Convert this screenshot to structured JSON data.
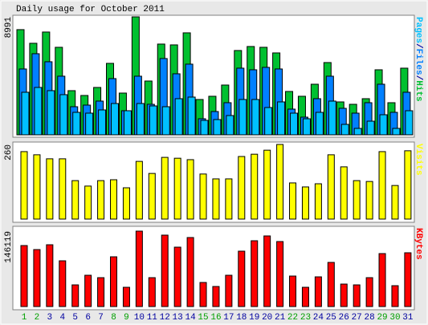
{
  "title": "Daily usage for October 2011",
  "legend_separator": "/",
  "chart_data": [
    {
      "type": "bar",
      "ylim": [
        0,
        8991
      ],
      "yticks": [
        8991
      ],
      "series": [
        {
          "name": "Pages",
          "color": "#00c0ff",
          "values": [
            3244,
            3611,
            3366,
            3060,
            1714,
            1652,
            1897,
            2387,
            1836,
            2387,
            2203,
            2142,
            2754,
            2876,
            1102,
            1163,
            1469,
            2693,
            2693,
            2081,
            2509,
            1652,
            1224,
            1714,
            2570,
            796,
            490,
            1040,
            1530,
            490,
            1836
          ]
        },
        {
          "name": "Files",
          "color": "#0080ff",
          "values": [
            5018,
            6181,
            5569,
            4468,
            2142,
            2264,
            2570,
            4284,
            1836,
            4468,
            2326,
            5814,
            4651,
            5386,
            1224,
            1775,
            2448,
            5080,
            4957,
            5141,
            5018,
            1958,
            1346,
            2754,
            4468,
            2020,
            1652,
            2448,
            3856,
            1714,
            3244
          ]
        },
        {
          "name": "Hits",
          "color": "#00c030",
          "values": [
            8017,
            6977,
            7834,
            6671,
            3366,
            2999,
            3611,
            5447,
            3182,
            8991,
            4100,
            6916,
            6854,
            7772,
            2693,
            2938,
            3794,
            6426,
            6732,
            6671,
            6242,
            3305,
            2938,
            3856,
            5508,
            2509,
            2326,
            2754,
            4957,
            2448,
            5080
          ]
        }
      ]
    },
    {
      "type": "bar",
      "ylim": [
        0,
        260
      ],
      "yticks": [
        260
      ],
      "series": [
        {
          "name": "Visits",
          "color": "#ffff00",
          "values": [
            235,
            224,
            210,
            210,
            134,
            115,
            134,
            137,
            109,
            201,
            159,
            215,
            212,
            207,
            157,
            140,
            140,
            218,
            226,
            240,
            260,
            126,
            112,
            123,
            224,
            182,
            134,
            131,
            235,
            117,
            238
          ]
        }
      ]
    },
    {
      "type": "bar",
      "ylim": [
        0,
        146119
      ],
      "yticks": [
        146119
      ],
      "categories": [
        "1",
        "2",
        "3",
        "4",
        "5",
        "6",
        "7",
        "8",
        "9",
        "10",
        "11",
        "12",
        "13",
        "14",
        "15",
        "16",
        "17",
        "18",
        "19",
        "20",
        "21",
        "22",
        "23",
        "24",
        "25",
        "26",
        "27",
        "28",
        "29",
        "30",
        "31"
      ],
      "category_colors": [
        "#00a000",
        "#00a000",
        "#0000a0",
        "#0000a0",
        "#0000a0",
        "#0000a0",
        "#0000a0",
        "#00a000",
        "#00a000",
        "#0000a0",
        "#0000a0",
        "#0000a0",
        "#0000a0",
        "#0000a0",
        "#00a000",
        "#00a000",
        "#0000a0",
        "#0000a0",
        "#0000a0",
        "#0000a0",
        "#0000a0",
        "#00a000",
        "#00a000",
        "#0000a0",
        "#0000a0",
        "#0000a0",
        "#0000a0",
        "#0000a0",
        "#00a000",
        "#00a000",
        "#0000a0"
      ],
      "series": [
        {
          "name": "KBytes",
          "color": "#ff0000",
          "values": [
            118142,
            110370,
            119697,
            88607,
            41972,
            60626,
            55962,
            96379,
            37308,
            146119,
            55962,
            138351,
            115033,
            133687,
            46635,
            38863,
            60626,
            107261,
            127469,
            136797,
            125915,
            59071,
            37308,
            57517,
            85498,
            43526,
            41972,
            55962,
            102597,
            40417,
            104152
          ]
        }
      ]
    }
  ]
}
